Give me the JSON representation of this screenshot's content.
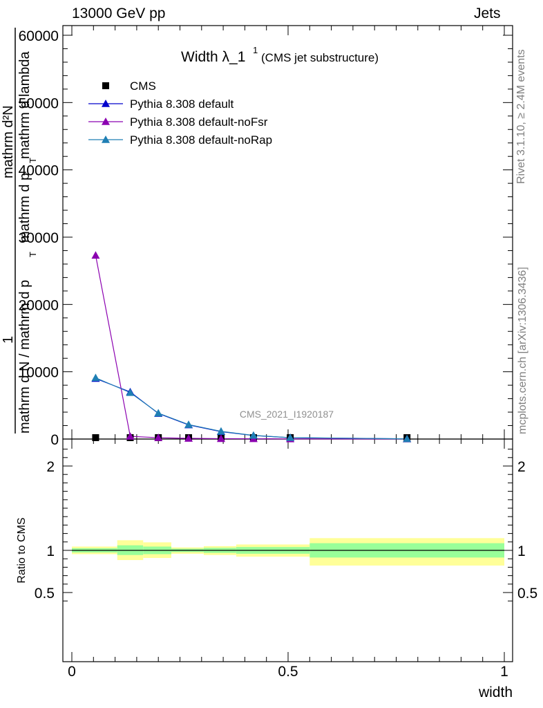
{
  "header": {
    "left": "13000 GeV pp",
    "right": "Jets"
  },
  "side": {
    "rivet": "Rivet 3.1.10, ≥ 2.4M events",
    "mcplots": "mcplots.cern.ch [arXiv:1306.3436]"
  },
  "watermark": "CMS_2021_I1920187",
  "chart_data": [
    {
      "type": "line",
      "title_main": "Width λ_1",
      "title_sup": "1",
      "title_sub": "(CMS jet substructure)",
      "ylabel_lines": [
        "1",
        "mathrm d N / mathrm d p",
        "T",
        "mathrm d²N",
        "mathrm d p",
        "T",
        "mathrm d lambda"
      ],
      "xlabel": "width",
      "xlim": [
        0,
        1
      ],
      "ylim": [
        0,
        60000
      ],
      "yticks": [
        0,
        10000,
        20000,
        30000,
        40000,
        50000,
        60000
      ],
      "xticks": [
        0,
        0.5,
        1
      ],
      "legend_position": "top-left",
      "series": [
        {
          "name": "CMS",
          "marker": "square",
          "color": "#000000",
          "x": [
            0.055,
            0.135,
            0.2,
            0.27,
            0.345,
            0.42,
            0.505,
            0.775
          ],
          "y": [
            0,
            0,
            0,
            0,
            0,
            0,
            0,
            0
          ]
        },
        {
          "name": "Pythia 8.308 default",
          "marker": "triangle",
          "color": "#0000cc",
          "x": [
            0.055,
            0.135,
            0.2,
            0.27,
            0.345,
            0.42,
            0.505,
            0.775
          ],
          "y": [
            9000,
            7000,
            3800,
            2100,
            1100,
            520,
            200,
            25
          ]
        },
        {
          "name": "Pythia 8.308 default-noFsr",
          "marker": "triangle",
          "color": "#8b00b0",
          "x": [
            0.055,
            0.135,
            0.2,
            0.27,
            0.345,
            0.42,
            0.505,
            0.775
          ],
          "y": [
            27300,
            400,
            200,
            100,
            60,
            40,
            20,
            5
          ]
        },
        {
          "name": "Pythia 8.308 default-noRap",
          "marker": "triangle",
          "color": "#1f7fb4",
          "x": [
            0.055,
            0.135,
            0.2,
            0.27,
            0.345,
            0.42,
            0.505,
            0.775
          ],
          "y": [
            9100,
            6900,
            3850,
            2150,
            1150,
            540,
            210,
            28
          ]
        }
      ]
    },
    {
      "type": "area",
      "ylabel": "Ratio to CMS",
      "xlabel": "width",
      "xlim": [
        0,
        1
      ],
      "ylim": [
        0.35,
        2.3
      ],
      "yticks": [
        0.5,
        1,
        2
      ],
      "ytick_labels": [
        "0.5",
        "1",
        "2"
      ],
      "xticks": [
        0,
        0.5,
        1
      ],
      "xtick_labels": [
        "0",
        "0.5",
        "1"
      ],
      "colors": {
        "inner": "#99ff99",
        "outer": "#ffff99"
      },
      "bands": [
        {
          "x0": 0.0,
          "x1": 0.105,
          "inner": [
            0.975,
            1.025
          ],
          "outer": [
            0.955,
            1.045
          ]
        },
        {
          "x0": 0.105,
          "x1": 0.165,
          "inner": [
            0.945,
            1.06
          ],
          "outer": [
            0.885,
            1.12
          ]
        },
        {
          "x0": 0.165,
          "x1": 0.23,
          "inner": [
            0.955,
            1.045
          ],
          "outer": [
            0.91,
            1.095
          ]
        },
        {
          "x0": 0.23,
          "x1": 0.305,
          "inner": [
            0.98,
            1.02
          ],
          "outer": [
            0.96,
            1.035
          ]
        },
        {
          "x0": 0.305,
          "x1": 0.38,
          "inner": [
            0.97,
            1.03
          ],
          "outer": [
            0.945,
            1.05
          ]
        },
        {
          "x0": 0.38,
          "x1": 0.55,
          "inner": [
            0.96,
            1.04
          ],
          "outer": [
            0.925,
            1.07
          ]
        },
        {
          "x0": 0.55,
          "x1": 1.0,
          "inner": [
            0.915,
            1.085
          ],
          "outer": [
            0.82,
            1.145
          ]
        }
      ]
    }
  ]
}
